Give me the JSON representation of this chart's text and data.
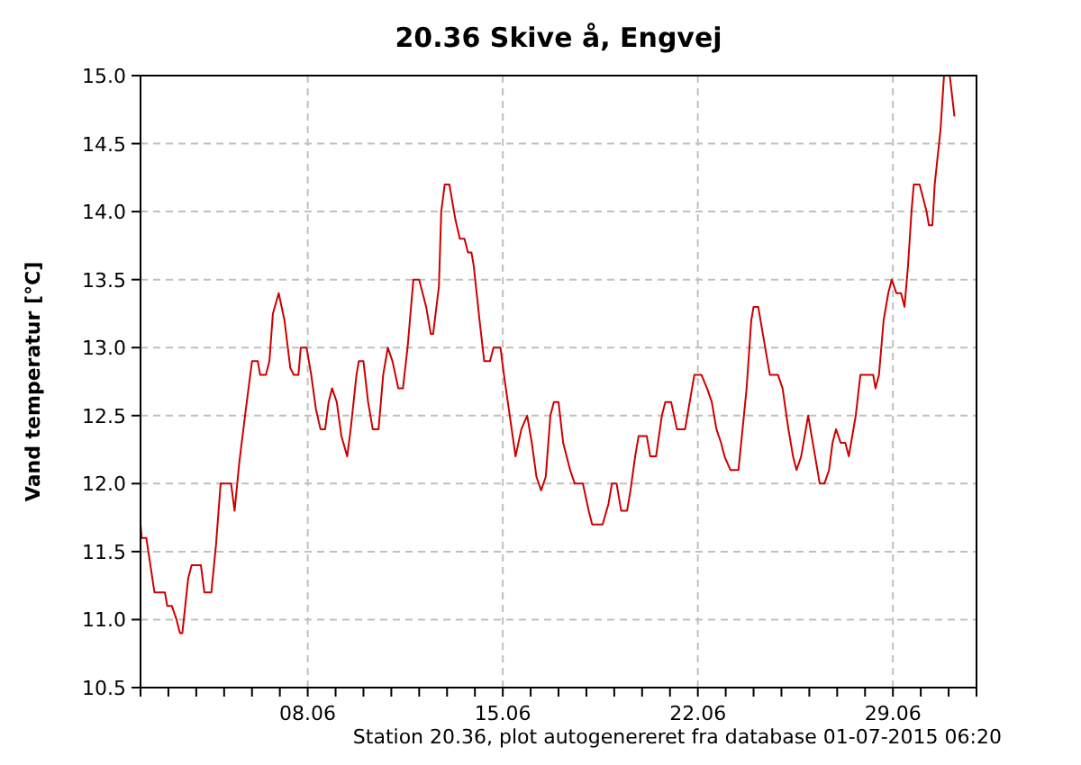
{
  "chart_data": {
    "type": "line",
    "title": "20.36 Skive å, Engvej",
    "ylabel": "Vand temperatur [°C]",
    "annotations": [
      "Station 20.36, plot autogenereret fra database 01-07-2015 06:20"
    ],
    "xlim": [
      "2015-06-02T00:00",
      "2015-07-02T00:00"
    ],
    "xticks": [
      {
        "value": "2015-06-02T00:00",
        "label": null
      },
      {
        "value": "2015-06-03T00:00",
        "label": null
      },
      {
        "value": "2015-06-04T00:00",
        "label": null
      },
      {
        "value": "2015-06-05T00:00",
        "label": null
      },
      {
        "value": "2015-06-06T00:00",
        "label": null
      },
      {
        "value": "2015-06-07T00:00",
        "label": null
      },
      {
        "value": "2015-06-08T00:00",
        "label": "08.06"
      },
      {
        "value": "2015-06-09T00:00",
        "label": null
      },
      {
        "value": "2015-06-10T00:00",
        "label": null
      },
      {
        "value": "2015-06-11T00:00",
        "label": null
      },
      {
        "value": "2015-06-12T00:00",
        "label": null
      },
      {
        "value": "2015-06-13T00:00",
        "label": null
      },
      {
        "value": "2015-06-14T00:00",
        "label": null
      },
      {
        "value": "2015-06-15T00:00",
        "label": "15.06"
      },
      {
        "value": "2015-06-16T00:00",
        "label": null
      },
      {
        "value": "2015-06-17T00:00",
        "label": null
      },
      {
        "value": "2015-06-18T00:00",
        "label": null
      },
      {
        "value": "2015-06-19T00:00",
        "label": null
      },
      {
        "value": "2015-06-20T00:00",
        "label": null
      },
      {
        "value": "2015-06-21T00:00",
        "label": null
      },
      {
        "value": "2015-06-22T00:00",
        "label": "22.06"
      },
      {
        "value": "2015-06-23T00:00",
        "label": null
      },
      {
        "value": "2015-06-24T00:00",
        "label": null
      },
      {
        "value": "2015-06-25T00:00",
        "label": null
      },
      {
        "value": "2015-06-26T00:00",
        "label": null
      },
      {
        "value": "2015-06-27T00:00",
        "label": null
      },
      {
        "value": "2015-06-28T00:00",
        "label": null
      },
      {
        "value": "2015-06-29T00:00",
        "label": "29.06"
      },
      {
        "value": "2015-06-30T00:00",
        "label": null
      },
      {
        "value": "2015-07-01T00:00",
        "label": null
      },
      {
        "value": "2015-07-02T00:00",
        "label": null
      }
    ],
    "ylim": [
      10.5,
      15
    ],
    "yticks": [
      {
        "value": 10.5,
        "label": "10.5"
      },
      {
        "value": 11,
        "label": "11.0"
      },
      {
        "value": 11.5,
        "label": "11.5"
      },
      {
        "value": 12,
        "label": "12.0"
      },
      {
        "value": 12.5,
        "label": "12.5"
      },
      {
        "value": 13,
        "label": "13.0"
      },
      {
        "value": 13.5,
        "label": "13.5"
      },
      {
        "value": 14,
        "label": "14.0"
      },
      {
        "value": 14.5,
        "label": "14.5"
      },
      {
        "value": 15,
        "label": "15.0"
      }
    ],
    "grid": true,
    "marker": "none",
    "line_style": "solid",
    "series": [
      {
        "color": "#cc0000",
        "x": [
          "2015-06-02T00:00",
          "2015-06-02T01:00",
          "2015-06-02T05:00",
          "2015-06-02T12:00",
          "2015-06-02T21:00",
          "2015-06-02T23:00",
          "2015-06-03T03:00",
          "2015-06-03T07:00",
          "2015-06-03T10:00",
          "2015-06-03T12:00",
          "2015-06-03T17:00",
          "2015-06-03T20:00",
          "2015-06-04T04:00",
          "2015-06-04T07:00",
          "2015-06-04T13:00",
          "2015-06-04T17:00",
          "2015-06-04T21:00",
          "2015-06-05T06:00",
          "2015-06-05T09:00",
          "2015-06-05T13:00",
          "2015-06-05T18:00",
          "2015-06-05T21:00",
          "2015-06-06T00:00",
          "2015-06-06T05:00",
          "2015-06-06T07:00",
          "2015-06-06T12:00",
          "2015-06-06T15:00",
          "2015-06-06T18:00",
          "2015-06-06T23:00",
          "2015-06-07T04:00",
          "2015-06-07T09:00",
          "2015-06-07T12:00",
          "2015-06-07T16:00",
          "2015-06-07T18:00",
          "2015-06-07T23:00",
          "2015-06-08T03:00",
          "2015-06-08T07:00",
          "2015-06-08T11:00",
          "2015-06-08T15:00",
          "2015-06-08T18:00",
          "2015-06-08T21:00",
          "2015-06-09T01:00",
          "2015-06-09T05:00",
          "2015-06-09T10:00",
          "2015-06-09T13:00",
          "2015-06-09T18:00",
          "2015-06-09T20:00",
          "2015-06-10T00:00",
          "2015-06-10T04:00",
          "2015-06-10T08:00",
          "2015-06-10T13:00",
          "2015-06-10T17:00",
          "2015-06-10T21:00",
          "2015-06-11T01:00",
          "2015-06-11T06:00",
          "2015-06-11T10:00",
          "2015-06-11T14:00",
          "2015-06-11T19:00",
          "2015-06-12T00:00",
          "2015-06-12T06:00",
          "2015-06-12T10:00",
          "2015-06-12T12:00",
          "2015-06-12T17:00",
          "2015-06-12T19:00",
          "2015-06-12T22:00",
          "2015-06-13T02:00",
          "2015-06-13T07:00",
          "2015-06-13T11:00",
          "2015-06-13T15:00",
          "2015-06-13T18:00",
          "2015-06-13T21:00",
          "2015-06-13T23:00",
          "2015-06-14T04:00",
          "2015-06-14T08:00",
          "2015-06-14T13:00",
          "2015-06-14T16:00",
          "2015-06-14T22:00",
          "2015-06-15T01:00",
          "2015-06-15T06:00",
          "2015-06-15T11:00",
          "2015-06-15T16:00",
          "2015-06-15T21:00",
          "2015-06-16T01:00",
          "2015-06-16T05:00",
          "2015-06-16T09:00",
          "2015-06-16T13:00",
          "2015-06-16T17:00",
          "2015-06-16T20:00",
          "2015-06-17T00:00",
          "2015-06-17T04:00",
          "2015-06-17T10:00",
          "2015-06-17T14:00",
          "2015-06-17T21:00",
          "2015-06-18T02:00",
          "2015-06-18T05:00",
          "2015-06-18T14:00",
          "2015-06-18T19:00",
          "2015-06-18T22:00",
          "2015-06-19T02:00",
          "2015-06-19T06:00",
          "2015-06-19T11:00",
          "2015-06-19T14:00",
          "2015-06-19T18:00",
          "2015-06-19T21:00",
          "2015-06-20T04:00",
          "2015-06-20T07:00",
          "2015-06-20T12:00",
          "2015-06-20T17:00",
          "2015-06-20T20:00",
          "2015-06-21T01:00",
          "2015-06-21T06:00",
          "2015-06-21T13:00",
          "2015-06-21T17:00",
          "2015-06-21T21:00",
          "2015-06-22T03:00",
          "2015-06-22T08:00",
          "2015-06-22T12:00",
          "2015-06-22T16:00",
          "2015-06-22T20:00",
          "2015-06-22T23:00",
          "2015-06-23T04:00",
          "2015-06-23T11:00",
          "2015-06-23T18:00",
          "2015-06-23T22:00",
          "2015-06-24T00:00",
          "2015-06-24T04:00",
          "2015-06-24T08:00",
          "2015-06-24T12:00",
          "2015-06-24T14:00",
          "2015-06-24T21:00",
          "2015-06-25T01:00",
          "2015-06-25T06:00",
          "2015-06-25T10:00",
          "2015-06-25T13:00",
          "2015-06-25T17:00",
          "2015-06-25T21:00",
          "2015-06-25T23:00",
          "2015-06-26T01:00",
          "2015-06-26T05:00",
          "2015-06-26T09:00",
          "2015-06-26T13:00",
          "2015-06-26T17:00",
          "2015-06-26T20:00",
          "2015-06-26T23:00",
          "2015-06-27T03:00",
          "2015-06-27T07:00",
          "2015-06-27T10:00",
          "2015-06-27T12:00",
          "2015-06-27T16:00",
          "2015-06-27T20:00",
          "2015-06-28T07:00",
          "2015-06-28T09:00",
          "2015-06-28T12:00",
          "2015-06-28T16:00",
          "2015-06-28T20:00",
          "2015-06-28T23:00",
          "2015-06-29T03:00",
          "2015-06-29T07:00",
          "2015-06-29T10:00",
          "2015-06-29T13:00",
          "2015-06-29T16:00",
          "2015-06-29T18:00",
          "2015-06-29T23:00",
          "2015-06-30T05:00",
          "2015-06-30T07:00",
          "2015-06-30T10:00",
          "2015-06-30T12:00",
          "2015-06-30T17:00",
          "2015-06-30T20:00",
          "2015-07-01T01:00",
          "2015-07-01T03:00",
          "2015-07-01T05:00"
        ],
        "values": [
          11.7,
          11.6,
          11.6,
          11.2,
          11.2,
          11.1,
          11.1,
          11.0,
          10.9,
          10.9,
          11.3,
          11.4,
          11.4,
          11.2,
          11.2,
          11.55,
          12.0,
          12.0,
          11.8,
          12.15,
          12.5,
          12.7,
          12.9,
          12.9,
          12.8,
          12.8,
          12.9,
          13.25,
          13.4,
          13.2,
          12.85,
          12.8,
          12.8,
          13.0,
          13.0,
          12.8,
          12.55,
          12.4,
          12.4,
          12.6,
          12.7,
          12.6,
          12.35,
          12.2,
          12.4,
          12.8,
          12.9,
          12.9,
          12.6,
          12.4,
          12.4,
          12.8,
          13.0,
          12.9,
          12.7,
          12.7,
          13.0,
          13.5,
          13.5,
          13.3,
          13.1,
          13.1,
          13.45,
          14.0,
          14.2,
          14.2,
          13.95,
          13.8,
          13.8,
          13.7,
          13.7,
          13.6,
          13.2,
          12.9,
          12.9,
          13.0,
          13.0,
          12.8,
          12.5,
          12.2,
          12.4,
          12.5,
          12.3,
          12.05,
          11.95,
          12.05,
          12.5,
          12.6,
          12.6,
          12.3,
          12.1,
          12.0,
          12.0,
          11.8,
          11.7,
          11.7,
          11.85,
          12.0,
          12.0,
          11.8,
          11.8,
          11.95,
          12.2,
          12.35,
          12.35,
          12.2,
          12.2,
          12.5,
          12.6,
          12.6,
          12.4,
          12.4,
          12.6,
          12.8,
          12.8,
          12.7,
          12.6,
          12.4,
          12.3,
          12.2,
          12.1,
          12.1,
          12.7,
          13.2,
          13.3,
          13.3,
          13.1,
          12.9,
          12.8,
          12.8,
          12.7,
          12.4,
          12.2,
          12.1,
          12.2,
          12.4,
          12.5,
          12.4,
          12.2,
          12.0,
          12.0,
          12.1,
          12.3,
          12.4,
          12.3,
          12.3,
          12.2,
          12.3,
          12.5,
          12.8,
          12.8,
          12.7,
          12.8,
          13.2,
          13.4,
          13.5,
          13.4,
          13.4,
          13.3,
          13.6,
          14.0,
          14.2,
          14.2,
          14.0,
          13.9,
          13.9,
          14.2,
          14.6,
          15.0,
          15.0,
          14.85,
          14.7
        ]
      }
    ]
  }
}
